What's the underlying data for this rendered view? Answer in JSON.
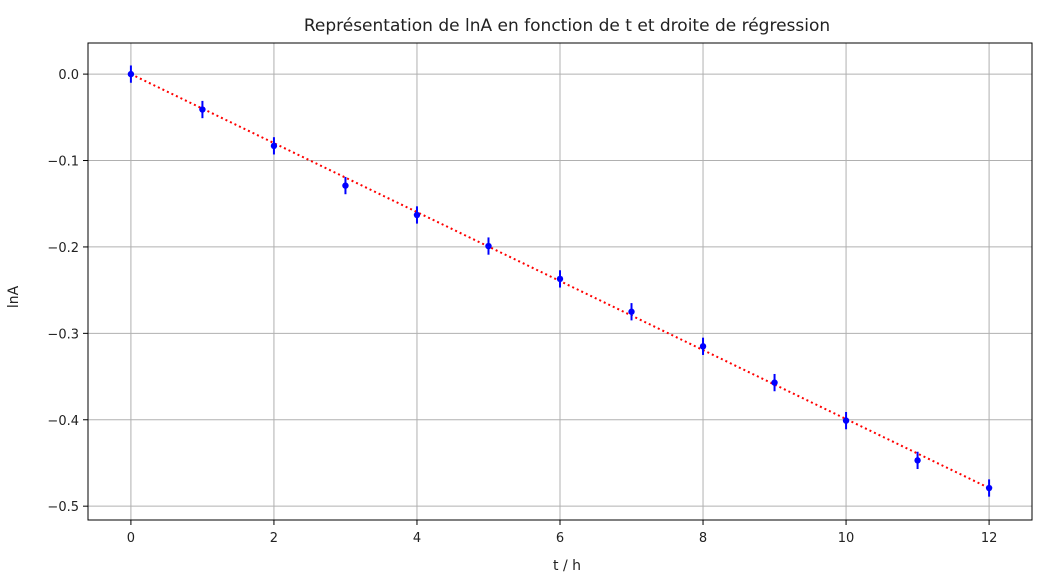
{
  "chart_data": {
    "type": "scatter",
    "title": "Représentation de lnA en fonction de t et droite de régression",
    "xlabel": "t / h",
    "ylabel": "lnA",
    "xlim": [
      -0.6,
      12.6
    ],
    "ylim": [
      -0.516,
      0.036
    ],
    "x_ticks": [
      0,
      2,
      4,
      6,
      8,
      10,
      12
    ],
    "x_tick_labels": [
      "0",
      "2",
      "4",
      "6",
      "8",
      "10",
      "12"
    ],
    "y_ticks": [
      0.0,
      -0.1,
      -0.2,
      -0.3,
      -0.4,
      -0.5
    ],
    "y_tick_labels": [
      "0.0",
      "−0.1",
      "−0.2",
      "−0.3",
      "−0.4",
      "−0.5"
    ],
    "grid": true,
    "series": [
      {
        "kind": "errorbar-points",
        "color": "#0000ff",
        "x": [
          0,
          1,
          2,
          3,
          4,
          5,
          6,
          7,
          8,
          9,
          10,
          11,
          12
        ],
        "y": [
          0.0,
          -0.041,
          -0.083,
          -0.129,
          -0.163,
          -0.199,
          -0.237,
          -0.275,
          -0.315,
          -0.357,
          -0.401,
          -0.447,
          -0.479
        ],
        "yerr": 0.01
      },
      {
        "kind": "regression-line",
        "color": "#ff0000",
        "line_style": "dotted",
        "x": [
          0,
          12
        ],
        "y": [
          0.0,
          -0.479
        ]
      }
    ]
  }
}
